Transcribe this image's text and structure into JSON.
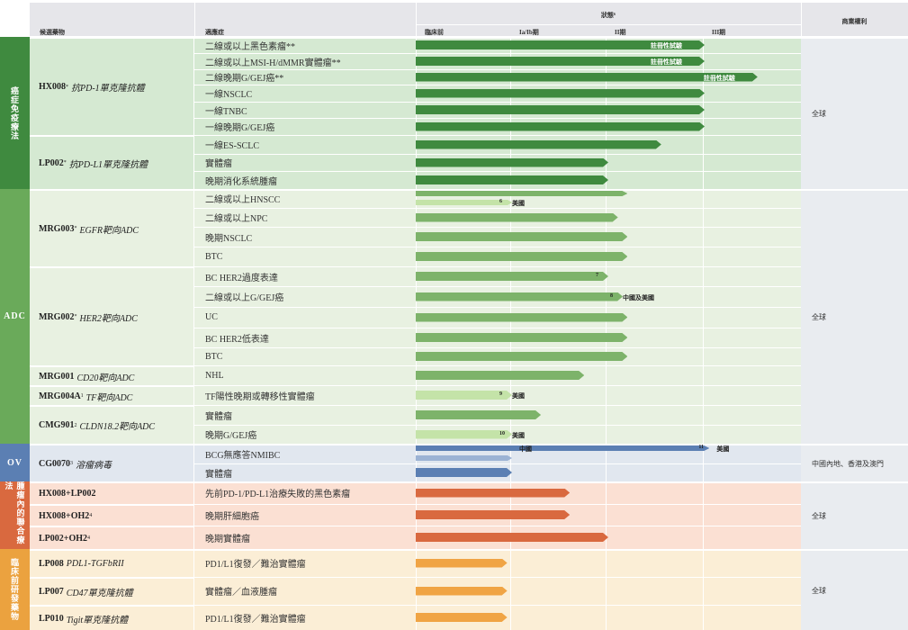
{
  "header": {
    "drug_col": "候選藥物",
    "indication_col": "適應症",
    "status_col": "狀態⁶",
    "rights_col": "商業權利",
    "phases": [
      "臨床前",
      "Ia/Ib期",
      "II期",
      "III期"
    ]
  },
  "categories": [
    {
      "label": "癌症免疫療法",
      "color": "#3f8a3f",
      "horizontal": false
    },
    {
      "label": "ADC",
      "color": "#6aaa5a",
      "horizontal": true
    },
    {
      "label": "OV",
      "color": "#5b7fb3",
      "horizontal": true
    },
    {
      "label": "腫瘤內的聯合療法",
      "color": "#d9693f",
      "horizontal": false
    },
    {
      "label": "臨床前研發藥物",
      "color": "#eba23f",
      "horizontal": false
    }
  ],
  "drugs": [
    {
      "name": "HX008",
      "sup": "*",
      "desc": "抗PD-1單克隆抗體"
    },
    {
      "name": "LP002",
      "sup": "*",
      "desc": "抗PD-L1單克隆抗體"
    },
    {
      "name": "MRG003",
      "sup": "*",
      "desc": "EGFR靶向ADC"
    },
    {
      "name": "MRG002",
      "sup": "*",
      "desc": "HER2靶向ADC"
    },
    {
      "name": "MRG001",
      "sup": "",
      "desc": "CD20靶向ADC"
    },
    {
      "name": "MRG004A",
      "sup": "1",
      "desc": "TF靶向ADC"
    },
    {
      "name": "CMG901",
      "sup": "2",
      "desc": "CLDN18.2靶向ADC"
    },
    {
      "name": "CG0070",
      "sup": "3",
      "desc": "溶瘤病毒"
    },
    {
      "name": "HX008+LP002",
      "sup": "",
      "desc": ""
    },
    {
      "name": "HX008+OH2",
      "sup": "4",
      "desc": ""
    },
    {
      "name": "LP002+OH2",
      "sup": "4",
      "desc": ""
    },
    {
      "name": "LP008",
      "sup": "",
      "desc": "PDL1-TGFbRII"
    },
    {
      "name": "LP007",
      "sup": "",
      "desc": "CD47單克隆抗體"
    },
    {
      "name": "LP010",
      "sup": "",
      "desc": "Tigit單克隆抗體"
    }
  ],
  "indications": [
    "二線或以上黑色素瘤**",
    "二線或以上MSI-H/dMMR實體瘤**",
    "二線晚期G/GEJ癌**",
    "一線NSCLC",
    "一線TNBC",
    "一線晚期G/GEJ癌",
    "一線ES-SCLC",
    "實體瘤",
    "晚期消化系統腫瘤",
    "二線或以上HNSCC",
    "二線或以上NPC",
    "晚期NSCLC",
    "BTC",
    "BC HER2過度表達",
    "二線或以上G/GEJ癌",
    "UC",
    "BC HER2低表達",
    "BTC",
    "NHL",
    "TF陽性晚期或轉移性實體瘤",
    "實體瘤",
    "晚期G/GEJ癌",
    "BCG無應答NMIBC",
    "實體瘤",
    "先前PD-1/PD-L1治療失敗的黑色素瘤",
    "晚期肝細胞癌",
    "晚期實體瘤",
    "PD1/L1復發／難治實體瘤",
    "實體瘤／血液腫瘤",
    "PD1/L1復發／難治實體瘤"
  ],
  "rights": [
    "全球",
    "全球",
    "中國內地、香港及澳門",
    "全球",
    "全球"
  ],
  "bar_labels": {
    "registrational": "註冊性試驗"
  },
  "footnotes": [
    "6",
    "7",
    "8",
    "9",
    "10",
    "11"
  ],
  "notes": [
    "美國",
    "中國及美國",
    "美國",
    "美國",
    "中國",
    "美國"
  ],
  "chart_data": {
    "type": "table",
    "phases": [
      "臨床前",
      "Ia/Ib期",
      "II期",
      "III期"
    ],
    "progress_note": "Bar length in units of phase columns: 0 = start of 臨床前, 4 = end of III期",
    "rows": [
      {
        "drug": "HX008",
        "indication": "二線或以上黑色素瘤**",
        "progress": 3.0,
        "label": "註冊性試驗"
      },
      {
        "drug": "HX008",
        "indication": "二線或以上MSI-H/dMMR實體瘤**",
        "progress": 3.0,
        "label": "註冊性試驗"
      },
      {
        "drug": "HX008",
        "indication": "二線晚期G/GEJ癌**",
        "progress": 3.55,
        "label": "註冊性試驗"
      },
      {
        "drug": "HX008",
        "indication": "一線NSCLC",
        "progress": 3.0
      },
      {
        "drug": "HX008",
        "indication": "一線TNBC",
        "progress": 3.0
      },
      {
        "drug": "HX008",
        "indication": "一線晚期G/GEJ癌",
        "progress": 3.0
      },
      {
        "drug": "LP002",
        "indication": "一線ES-SCLC",
        "progress": 2.55
      },
      {
        "drug": "LP002",
        "indication": "實體瘤",
        "progress": 2.0
      },
      {
        "drug": "LP002",
        "indication": "晚期消化系統腫瘤",
        "progress": 2.0
      },
      {
        "drug": "MRG003",
        "indication": "二線或以上HNSCC",
        "progress": 2.2,
        "sub_progress": 1.0,
        "footnote": "6",
        "note": "美國"
      },
      {
        "drug": "MRG003",
        "indication": "二線或以上NPC",
        "progress": 2.1
      },
      {
        "drug": "MRG003",
        "indication": "晚期NSCLC",
        "progress": 2.2
      },
      {
        "drug": "MRG003",
        "indication": "BTC",
        "progress": 2.2
      },
      {
        "drug": "MRG002",
        "indication": "BC HER2過度表達",
        "progress": 2.0,
        "footnote": "7"
      },
      {
        "drug": "MRG002",
        "indication": "二線或以上G/GEJ癌",
        "progress": 2.15,
        "footnote": "8",
        "note": "中國及美國"
      },
      {
        "drug": "MRG002",
        "indication": "UC",
        "progress": 2.2
      },
      {
        "drug": "MRG002",
        "indication": "BC HER2低表達",
        "progress": 2.2
      },
      {
        "drug": "MRG002",
        "indication": "BTC",
        "progress": 2.2
      },
      {
        "drug": "MRG001",
        "indication": "NHL",
        "progress": 1.75
      },
      {
        "drug": "MRG004A",
        "indication": "TF陽性晚期或轉移性實體瘤",
        "progress": 1.0,
        "footnote": "9",
        "note": "美國"
      },
      {
        "drug": "CMG901",
        "indication": "實體瘤",
        "progress": 1.3
      },
      {
        "drug": "CMG901",
        "indication": "晚期G/GEJ癌",
        "progress": 1.0,
        "footnote": "10",
        "note": "美國"
      },
      {
        "drug": "CG0070",
        "indication": "BCG無應答NMIBC",
        "progress": 3.05,
        "sub_progress": 1.0,
        "sub_note": "中國",
        "footnote": "11",
        "note": "美國"
      },
      {
        "drug": "CG0070",
        "indication": "實體瘤",
        "progress": 1.0
      },
      {
        "drug": "HX008+LP002",
        "indication": "先前PD-1/PD-L1治療失敗的黑色素瘤",
        "progress": 1.6
      },
      {
        "drug": "HX008+OH2",
        "indication": "晚期肝細胞癌",
        "progress": 1.6
      },
      {
        "drug": "LP002+OH2",
        "indication": "晚期實體瘤",
        "progress": 2.0
      },
      {
        "drug": "LP008",
        "indication": "PD1/L1復發／難治實體瘤",
        "progress": 0.95
      },
      {
        "drug": "LP007",
        "indication": "實體瘤／血液腫瘤",
        "progress": 0.95
      },
      {
        "drug": "LP010",
        "indication": "PD1/L1復發／難治實體瘤",
        "progress": 0.95
      }
    ]
  }
}
